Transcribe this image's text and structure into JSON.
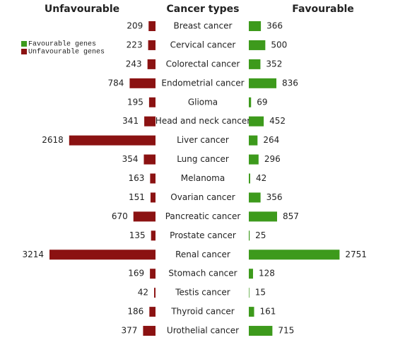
{
  "chart_data": {
    "type": "butterfly_bar",
    "column_titles": [
      "Unfavourable",
      "Cancer types",
      "Favourable"
    ],
    "categories": [
      "Breast cancer",
      "Cervical cancer",
      "Colorectal cancer",
      "Endometrial cancer",
      "Glioma",
      "Head and neck cancer",
      "Liver cancer",
      "Lung cancer",
      "Melanoma",
      "Ovarian cancer",
      "Pancreatic cancer",
      "Prostate cancer",
      "Renal cancer",
      "Stomach cancer",
      "Testis cancer",
      "Thyroid cancer",
      "Urothelial cancer"
    ],
    "series": [
      {
        "name": "Favourable genes",
        "color": "#3d9a1c",
        "side": "right",
        "values": [
          366,
          500,
          352,
          836,
          69,
          452,
          264,
          296,
          42,
          356,
          857,
          25,
          2751,
          128,
          15,
          161,
          715
        ]
      },
      {
        "name": "Unfavourable genes",
        "color": "#8b1212",
        "side": "left",
        "values": [
          209,
          223,
          243,
          784,
          195,
          341,
          2618,
          354,
          163,
          151,
          670,
          135,
          3214,
          169,
          42,
          186,
          377
        ]
      }
    ]
  }
}
